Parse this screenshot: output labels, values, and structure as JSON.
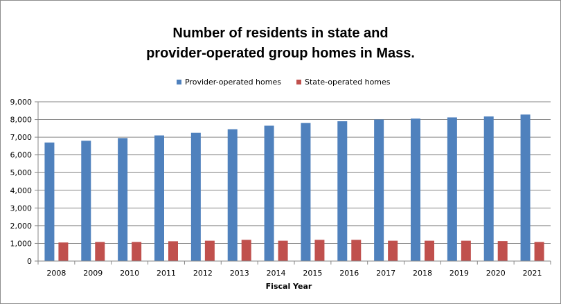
{
  "chart_data": {
    "type": "bar",
    "title_lines": [
      "Number of residents in state and",
      "provider-operated group homes in Mass."
    ],
    "xlabel": "Fiscal  Year",
    "ylabel": "",
    "categories": [
      "2008",
      "2009",
      "2010",
      "2011",
      "2012",
      "2013",
      "2014",
      "2015",
      "2016",
      "2017",
      "2018",
      "2019",
      "2020",
      "2021"
    ],
    "series": [
      {
        "name": "Provider-operated homes",
        "color": "#4f81bd",
        "values": [
          6700,
          6800,
          6950,
          7100,
          7250,
          7450,
          7650,
          7800,
          7900,
          8000,
          8050,
          8120,
          8170,
          8280
        ]
      },
      {
        "name": "State-operated homes",
        "color": "#c0504d",
        "values": [
          1050,
          1080,
          1080,
          1120,
          1150,
          1200,
          1150,
          1200,
          1200,
          1150,
          1150,
          1150,
          1130,
          1080
        ]
      }
    ],
    "ylim": [
      0,
      9000
    ],
    "yticks": [
      0,
      1000,
      2000,
      3000,
      4000,
      5000,
      6000,
      7000,
      8000,
      9000
    ],
    "ytick_labels": [
      "0",
      "1,000",
      "2,000",
      "3,000",
      "4,000",
      "5,000",
      "6,000",
      "7,000",
      "8,000",
      "9,000"
    ],
    "grid": true,
    "legend_position": "top"
  }
}
